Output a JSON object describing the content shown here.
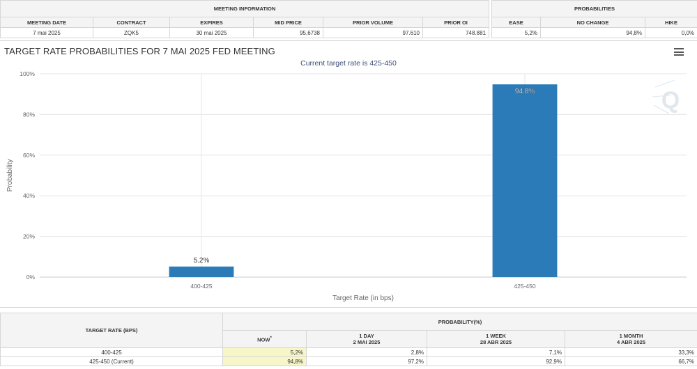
{
  "meeting_info": {
    "title": "MEETING INFORMATION",
    "headers": [
      "MEETING DATE",
      "CONTRACT",
      "EXPIRES",
      "MID PRICE",
      "PRIOR VOLUME",
      "PRIOR OI"
    ],
    "row": [
      "7 mai 2025",
      "ZQK5",
      "30 mai 2025",
      "95,6738",
      "97.610",
      "748.881"
    ]
  },
  "probabilities": {
    "title": "PROBABILITIES",
    "headers": [
      "EASE",
      "NO CHANGE",
      "HIKE"
    ],
    "row": [
      "5,2%",
      "94,8%",
      "0,0%"
    ]
  },
  "chart": {
    "title": "TARGET RATE PROBABILITIES FOR 7 MAI 2025 FED MEETING",
    "subtitle": "Current target rate is 425-450",
    "menu_icon": "hamburger-menu-icon",
    "watermark": "Q"
  },
  "chart_data": {
    "type": "bar",
    "title": "TARGET RATE PROBABILITIES FOR 7 MAI 2025 FED MEETING",
    "subtitle": "Current target rate is 425-450",
    "categories": [
      "400-425",
      "425-450"
    ],
    "values": [
      5.2,
      94.8
    ],
    "data_labels": [
      "5.2%",
      "94.8%"
    ],
    "xlabel": "Target Rate (in bps)",
    "ylabel": "Probability",
    "ylim": [
      0,
      100
    ],
    "yticks": [
      0,
      20,
      40,
      60,
      80,
      100
    ],
    "ytick_labels": [
      "0%",
      "20%",
      "40%",
      "60%",
      "80%",
      "100%"
    ],
    "bar_color": "#2b7bb9",
    "grid": true
  },
  "prob_table": {
    "target_header": "TARGET RATE (BPS)",
    "prob_header": "PROBABILITY(%)",
    "columns": [
      {
        "label": "NOW",
        "sub": "",
        "mark": "*"
      },
      {
        "label": "1 DAY",
        "sub": "2 MAI 2025",
        "mark": ""
      },
      {
        "label": "1 WEEK",
        "sub": "28 ABR 2025",
        "mark": ""
      },
      {
        "label": "1 MONTH",
        "sub": "4 ABR 2025",
        "mark": ""
      }
    ],
    "rows": [
      {
        "rate": "400-425",
        "values": [
          "5,2%",
          "2,8%",
          "7,1%",
          "33,3%"
        ]
      },
      {
        "rate": "425-450 (Current)",
        "values": [
          "94,8%",
          "97,2%",
          "92,9%",
          "66,7%"
        ]
      }
    ]
  }
}
